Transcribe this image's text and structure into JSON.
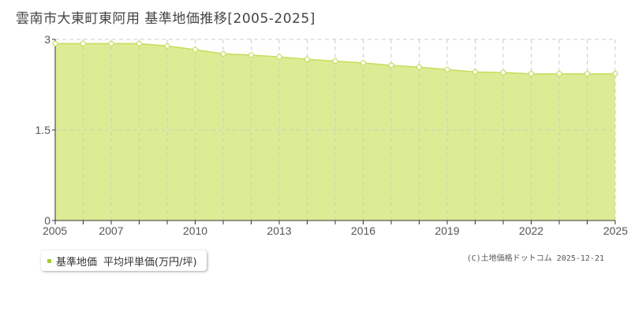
{
  "page": {
    "title": "雲南市大東町東阿用 基準地価推移[2005-2025]",
    "copyright": "(C)土地価格ドットコム 2025-12-21"
  },
  "legend": {
    "series_label": "基準地価",
    "unit_label": "平均坪単価(万円/坪)"
  },
  "colors": {
    "fill": "#dcec94",
    "line": "#c5de5c",
    "grid": "#cccccc",
    "marker_fill": "#ffffff",
    "axis": "#333333",
    "legend_swatch": "#a6cd2e"
  },
  "chart_data": {
    "type": "area",
    "title": "雲南市大東町東阿用 基準地価推移[2005-2025]",
    "xlabel": "",
    "ylabel": "",
    "legend_position": "bottom-left",
    "grid": true,
    "x": [
      2005,
      2006,
      2007,
      2008,
      2009,
      2010,
      2011,
      2012,
      2013,
      2014,
      2015,
      2016,
      2017,
      2018,
      2019,
      2020,
      2021,
      2022,
      2023,
      2024,
      2025
    ],
    "series": [
      {
        "name": "基準地価",
        "values": [
          2.93,
          2.93,
          2.93,
          2.93,
          2.89,
          2.83,
          2.76,
          2.74,
          2.71,
          2.67,
          2.64,
          2.61,
          2.57,
          2.54,
          2.5,
          2.46,
          2.45,
          2.43,
          2.43,
          2.43,
          2.43
        ]
      }
    ],
    "xlim": [
      2005,
      2025
    ],
    "ylim": [
      0,
      3
    ],
    "x_tick_labels": [
      "2005",
      "2007",
      "2010",
      "2013",
      "2016",
      "2019",
      "2022",
      "2025"
    ],
    "y_tick_labels": [
      "0",
      "1.5",
      "3"
    ]
  }
}
